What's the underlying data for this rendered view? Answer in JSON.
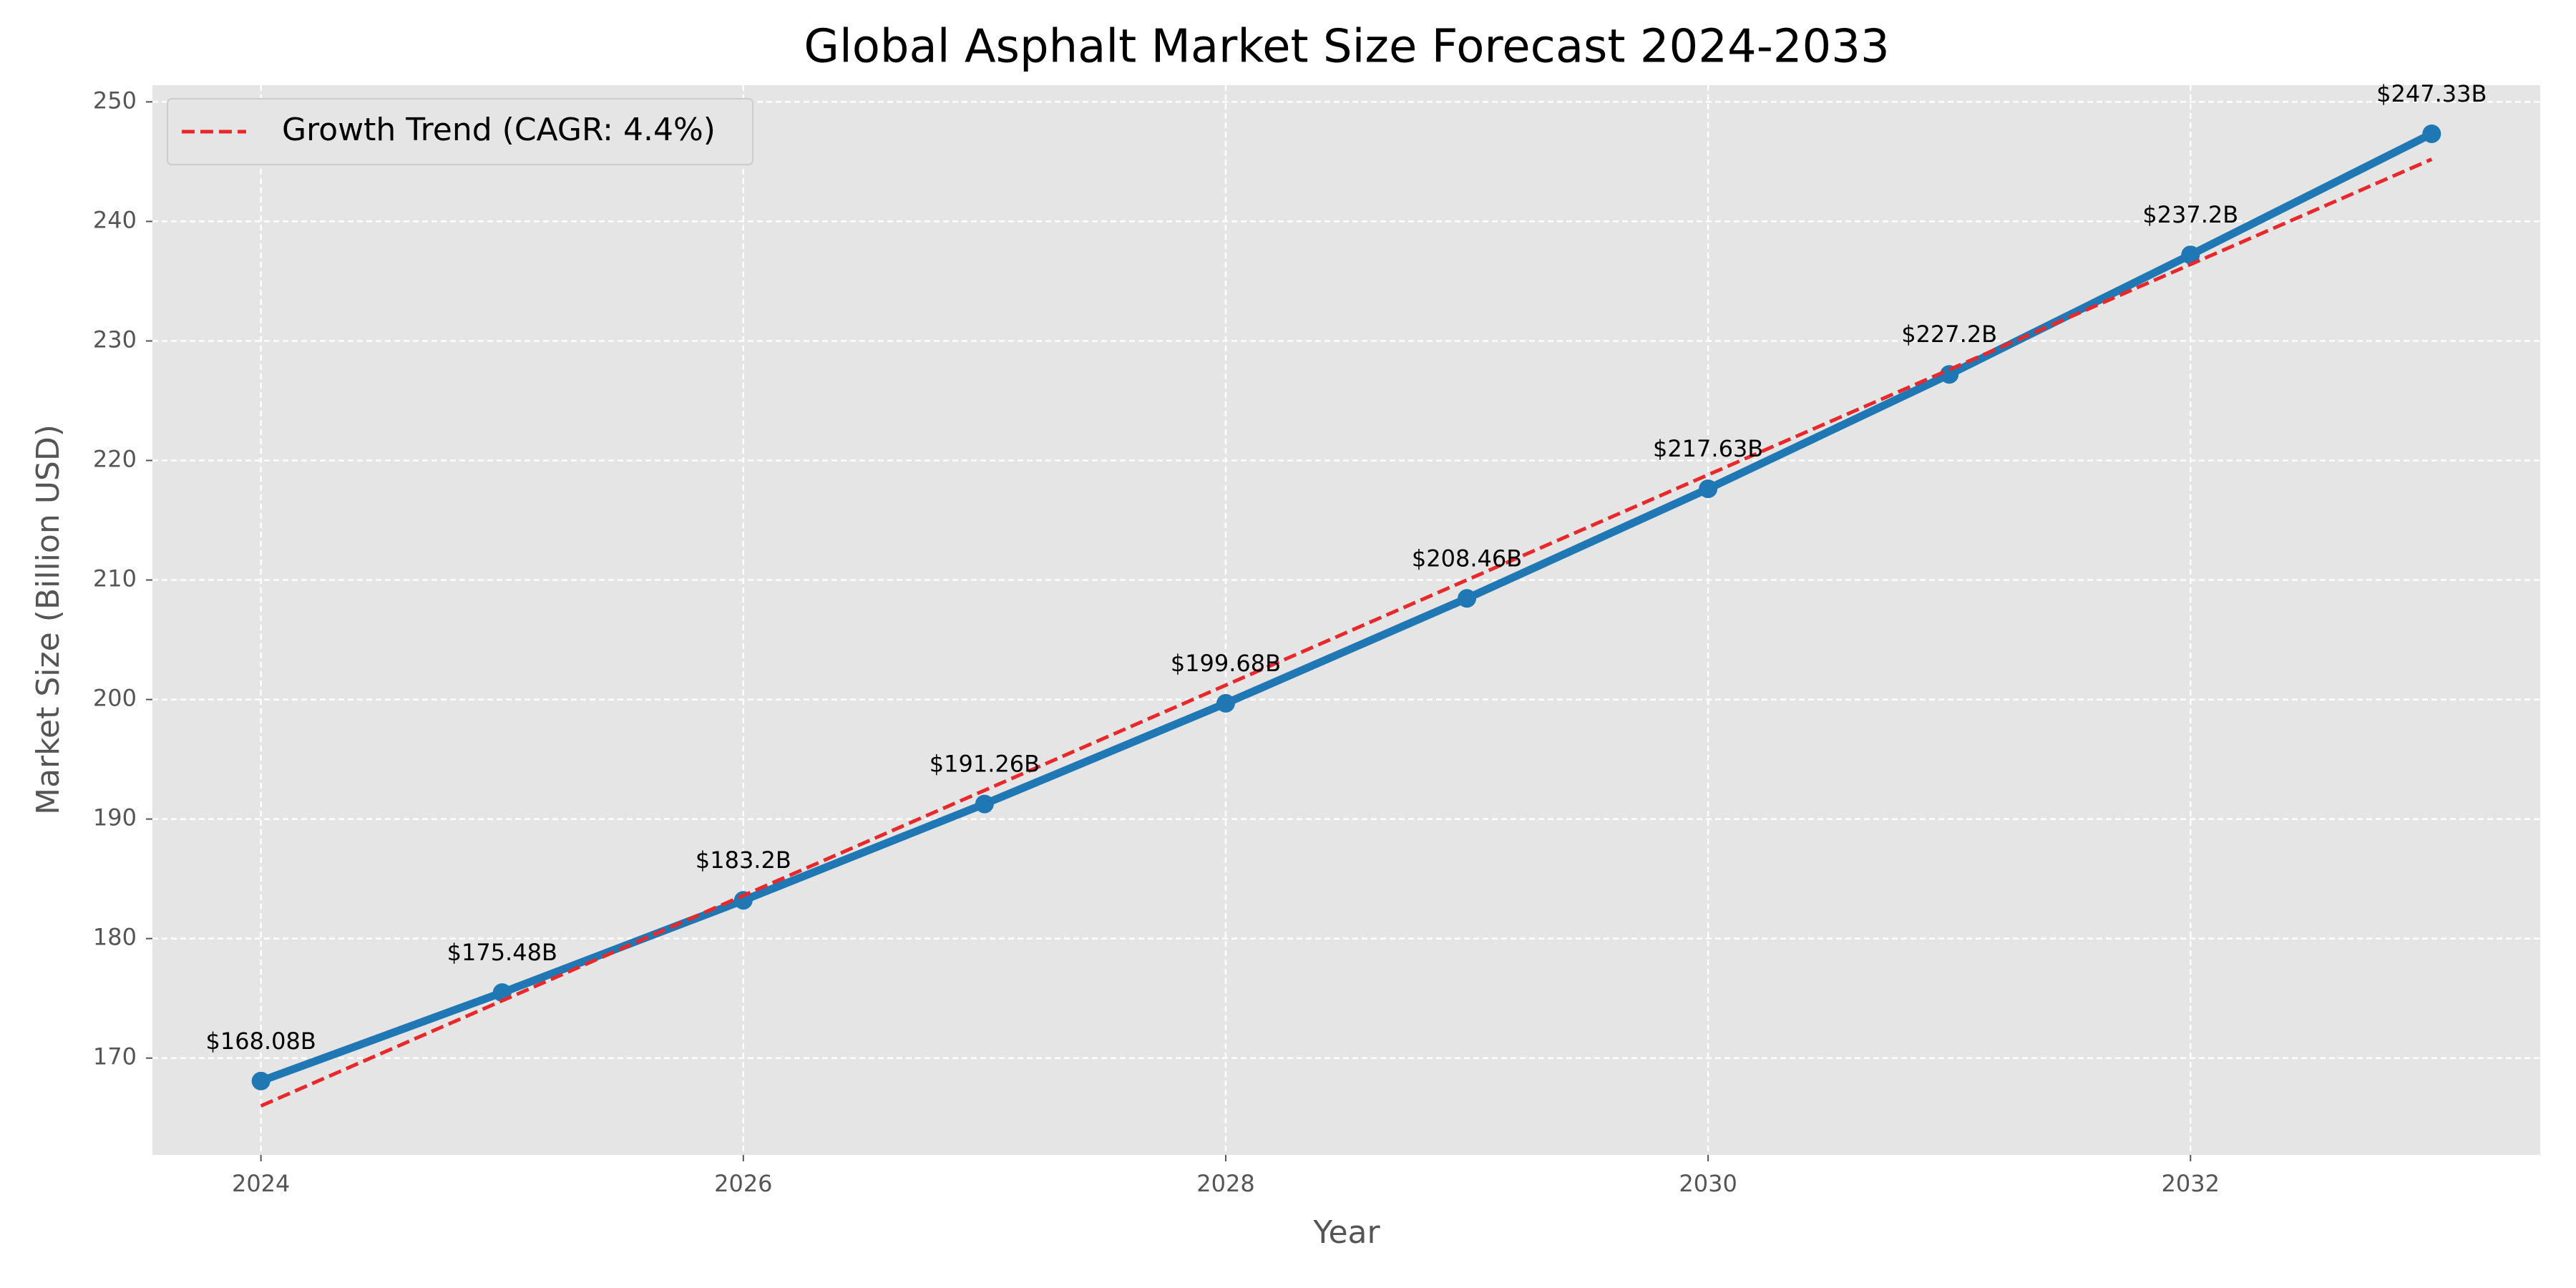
{
  "chart_data": {
    "type": "line",
    "title": "Global Asphalt Market Size Forecast 2024-2033",
    "xlabel": "Year",
    "ylabel": "Market Size (Billion USD)",
    "x": [
      2024,
      2025,
      2026,
      2027,
      2028,
      2029,
      2030,
      2031,
      2032,
      2033
    ],
    "series": [
      {
        "color": "#1f77b4",
        "markers": true,
        "values": [
          168.08,
          175.48,
          183.2,
          191.26,
          199.68,
          208.46,
          217.63,
          227.2,
          237.2,
          247.33
        ],
        "value_labels": [
          "$168.08B",
          "$175.48B",
          "$183.2B",
          "$191.26B",
          "$199.68B",
          "$208.46B",
          "$217.63B",
          "$227.2B",
          "$237.2B",
          "$247.33B"
        ]
      },
      {
        "name": "Growth Trend (CAGR: 4.4%)",
        "color": "#e8282b",
        "linestyle": "dashed",
        "values": [
          166.0,
          174.8,
          183.6,
          192.4,
          201.2,
          210.0,
          218.8,
          227.6,
          236.4,
          245.2
        ]
      }
    ],
    "xlim": [
      2023.55,
      2033.45
    ],
    "xticks": [
      2024,
      2026,
      2028,
      2030,
      2032
    ],
    "ylim": [
      161.9,
      251.4
    ],
    "yticks": [
      170,
      180,
      190,
      200,
      210,
      220,
      230,
      240,
      250
    ],
    "grid": true,
    "legend": "upper left"
  }
}
